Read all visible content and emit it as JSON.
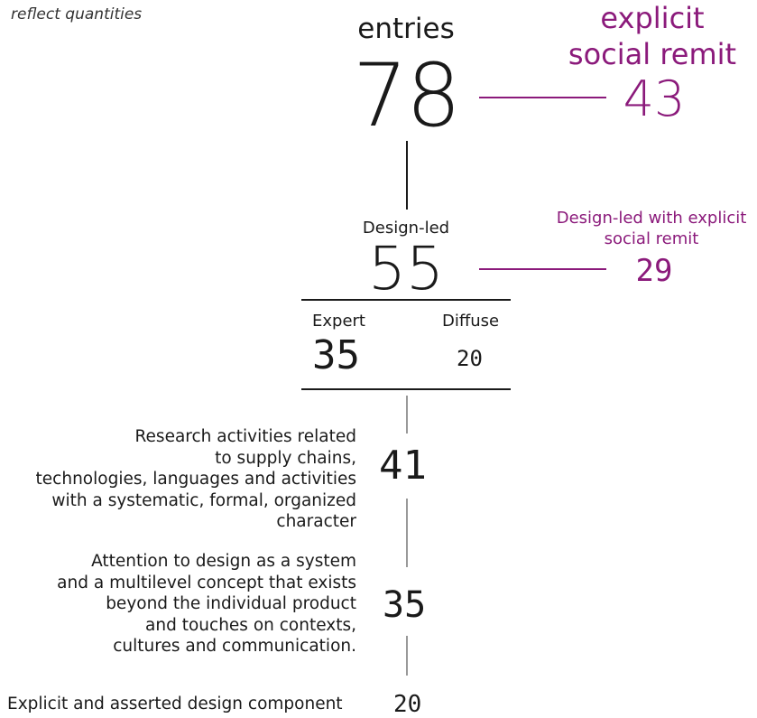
{
  "tagline": "reflect quantities",
  "colors": {
    "text": "#1a1a1a",
    "accent": "#8b1a7b",
    "line": "#1a1a1a"
  },
  "entries": {
    "label": "entries",
    "value": "78"
  },
  "explicit_social": {
    "label_line1": "explicit",
    "label_line2": "social remit",
    "value": "43"
  },
  "design_led": {
    "label": "Design-led",
    "value": "55"
  },
  "design_led_social": {
    "label_line1": "Design-led with explicit",
    "label_line2": "social remit",
    "value": "29"
  },
  "split": {
    "expert": {
      "label": "Expert",
      "value": "35"
    },
    "diffuse": {
      "label": "Diffuse",
      "value": "20"
    }
  },
  "criteria": [
    {
      "lines": [
        "Research activities related",
        "to supply chains,",
        "technologies, languages and activities",
        "with a systematic, formal, organized",
        "character"
      ],
      "value": "41"
    },
    {
      "lines": [
        "Attention to design as a system",
        "and a multilevel concept that exists",
        "beyond the individual product",
        "and touches on contexts,",
        "cultures and communication."
      ],
      "value": "35"
    },
    {
      "lines": [
        "Explicit and asserted design component"
      ],
      "value": "20"
    }
  ]
}
